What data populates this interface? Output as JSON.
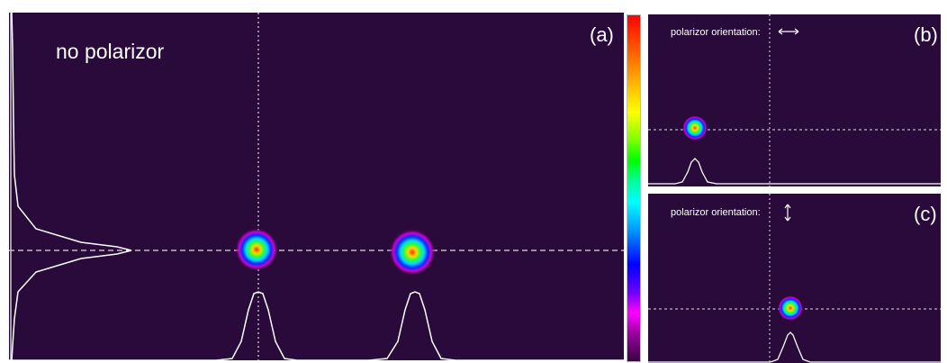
{
  "panel_a": {
    "label": "(a)",
    "condition": "no polarizor"
  },
  "panel_b": {
    "label": "(b)",
    "orientation_text": "polarizor orientation:",
    "orientation_icon": "horizontal-double-arrow"
  },
  "panel_c": {
    "label": "(c)",
    "orientation_text": "polarizor orientation:",
    "orientation_icon": "vertical-double-arrow"
  },
  "colors": {
    "background": "#2a0a3a",
    "profile_line": "#ffffff",
    "guide_line": "#dddddd"
  }
}
